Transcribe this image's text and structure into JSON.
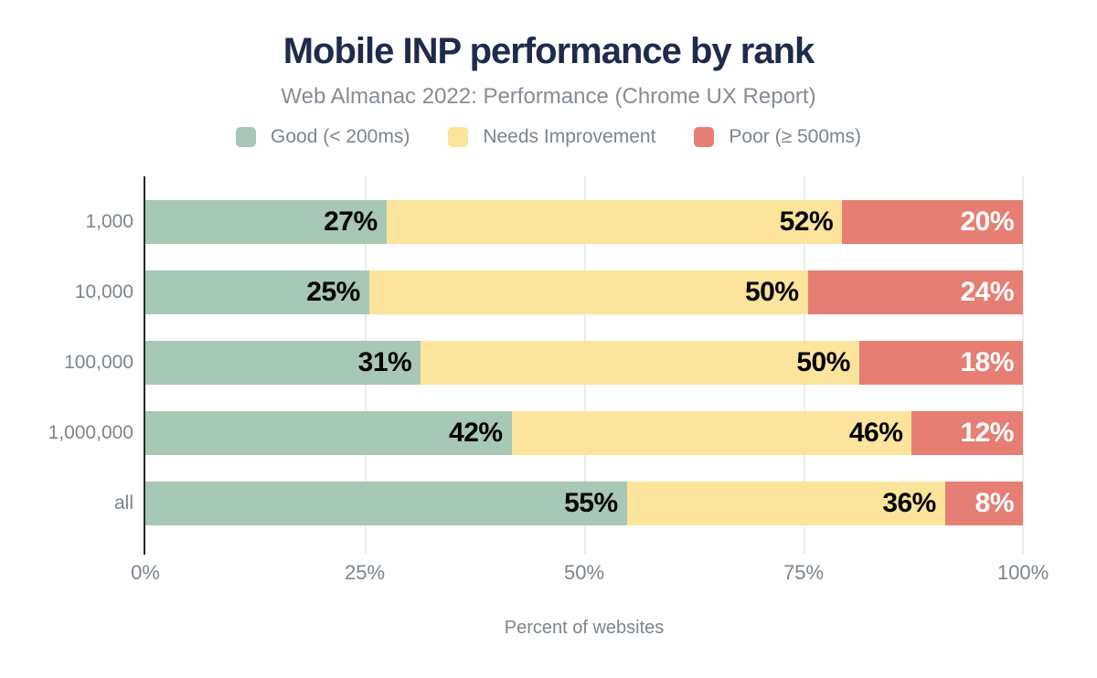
{
  "chart_data": {
    "type": "bar",
    "orientation": "horizontal",
    "stacked": true,
    "title": "Mobile INP performance by rank",
    "subtitle": "Web Almanac 2022: Performance (Chrome UX Report)",
    "categories": [
      "1,000",
      "10,000",
      "100,000",
      "1,000,000",
      "all"
    ],
    "series": [
      {
        "name": "Good (< 200ms)",
        "color": "#a6c8b5",
        "label_color": "#000000",
        "values": [
          27,
          25,
          31,
          42,
          55
        ],
        "labels": [
          "27%",
          "25%",
          "31%",
          "42%",
          "55%"
        ]
      },
      {
        "name": "Needs Improvement",
        "color": "#fce49c",
        "label_color": "#000000",
        "values": [
          52,
          50,
          50,
          46,
          36
        ],
        "labels": [
          "52%",
          "50%",
          "50%",
          "46%",
          "36%"
        ]
      },
      {
        "name": "Poor (≥ 500ms)",
        "color": "#e77e73",
        "label_color": "#ffffff",
        "values": [
          20,
          24,
          18,
          12,
          8
        ],
        "labels": [
          "20%",
          "24%",
          "18%",
          "12%",
          "8%"
        ]
      }
    ],
    "xlabel": "Percent of websites",
    "ylabel": "",
    "x_ticks": [
      "0%",
      "25%",
      "50%",
      "75%",
      "100%"
    ],
    "xlim": [
      0,
      100
    ],
    "grid": "vertical",
    "legend_position": "top"
  },
  "colors": {
    "background": "#ffffff",
    "title": "#1e2b4c",
    "subtitle": "#848d95",
    "axis_text": "#7c858c",
    "axis_line": "#24282d",
    "gridline": "#ececec"
  }
}
